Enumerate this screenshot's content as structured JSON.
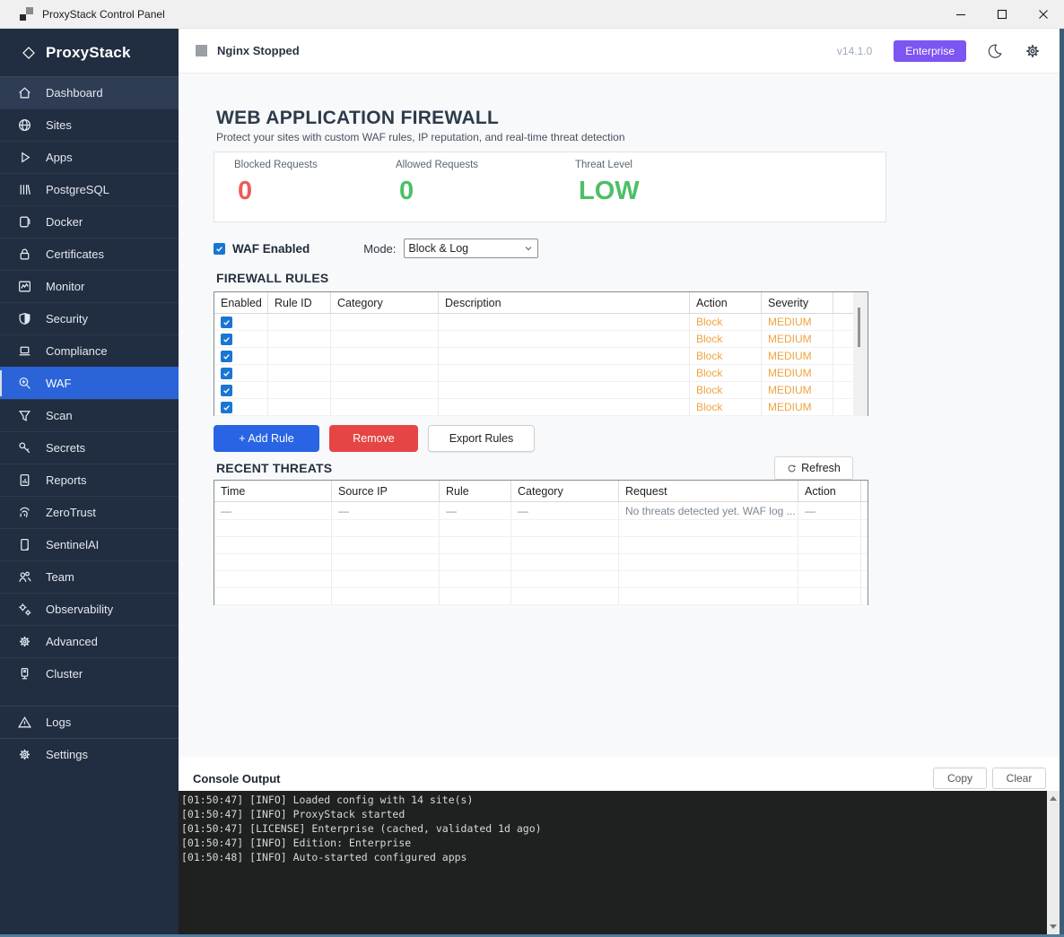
{
  "titlebar": {
    "title": "ProxyStack Control Panel"
  },
  "sidebar": {
    "brand": "ProxyStack",
    "items": [
      {
        "label": "Dashboard",
        "icon": "home-icon",
        "state": "hilite"
      },
      {
        "label": "Sites",
        "icon": "globe-icon"
      },
      {
        "label": "Apps",
        "icon": "play-icon"
      },
      {
        "label": "PostgreSQL",
        "icon": "database-icon"
      },
      {
        "label": "Docker",
        "icon": "container-icon"
      },
      {
        "label": "Certificates",
        "icon": "lock-icon"
      },
      {
        "label": "Monitor",
        "icon": "chart-icon"
      },
      {
        "label": "Security",
        "icon": "shield-icon"
      },
      {
        "label": "Compliance",
        "icon": "laptop-icon"
      },
      {
        "label": "WAF",
        "icon": "search-plus-icon",
        "state": "active"
      },
      {
        "label": "Scan",
        "icon": "funnel-icon"
      },
      {
        "label": "Secrets",
        "icon": "key-icon"
      },
      {
        "label": "Reports",
        "icon": "report-icon"
      },
      {
        "label": "ZeroTrust",
        "icon": "fingerprint-icon"
      },
      {
        "label": "SentinelAI",
        "icon": "document-icon"
      },
      {
        "label": "Team",
        "icon": "people-icon"
      },
      {
        "label": "Observability",
        "icon": "gears-icon"
      },
      {
        "label": "Advanced",
        "icon": "gear-icon"
      },
      {
        "label": "Cluster",
        "icon": "server-icon"
      }
    ],
    "footer_items": [
      {
        "label": "Logs",
        "icon": "warning-icon"
      },
      {
        "label": "Settings",
        "icon": "gear-icon"
      }
    ]
  },
  "topbar": {
    "status": "Nginx Stopped",
    "version": "v14.1.0",
    "badge": "Enterprise"
  },
  "waf": {
    "title": "WEB APPLICATION FIREWALL",
    "subtitle": "Protect your sites with custom WAF rules, IP reputation, and real-time threat detection",
    "stats": [
      {
        "label": "Blocked Requests",
        "value": "0",
        "color": "#e74c3c"
      },
      {
        "label": "Allowed Requests",
        "value": "0",
        "color": "#2eac44"
      },
      {
        "label": "Threat Level",
        "value": "LOW",
        "color": "#2eac44"
      }
    ],
    "enabled_label": "WAF Enabled",
    "enabled_checked": true,
    "mode_label": "Mode:",
    "mode_value": "Block & Log",
    "rules": {
      "heading": "FIREWALL RULES",
      "columns": [
        "Enabled",
        "Rule ID",
        "Category",
        "Description",
        "Action",
        "Severity"
      ],
      "rows": [
        {
          "enabled": true,
          "rule_id": "",
          "category": "",
          "description": "",
          "action": "Block",
          "severity": "MEDIUM"
        },
        {
          "enabled": true,
          "rule_id": "",
          "category": "",
          "description": "",
          "action": "Block",
          "severity": "MEDIUM"
        },
        {
          "enabled": true,
          "rule_id": "",
          "category": "",
          "description": "",
          "action": "Block",
          "severity": "MEDIUM"
        },
        {
          "enabled": true,
          "rule_id": "",
          "category": "",
          "description": "",
          "action": "Block",
          "severity": "MEDIUM"
        },
        {
          "enabled": true,
          "rule_id": "",
          "category": "",
          "description": "",
          "action": "Block",
          "severity": "MEDIUM"
        },
        {
          "enabled": true,
          "rule_id": "",
          "category": "",
          "description": "",
          "action": "Block",
          "severity": "MEDIUM"
        }
      ],
      "buttons": {
        "add": "+ Add Rule",
        "remove": "Remove",
        "export": "Export Rules"
      }
    },
    "threats": {
      "heading": "RECENT THREATS",
      "refresh_label": "Refresh",
      "columns": [
        "Time",
        "Source IP",
        "Rule",
        "Category",
        "Request",
        "Action"
      ],
      "rows": [
        {
          "time": "—",
          "source_ip": "—",
          "rule": "—",
          "category": "—",
          "request": "No threats detected yet. WAF log ...",
          "action": "—"
        }
      ],
      "empty_rows": 5
    }
  },
  "console": {
    "title": "Console Output",
    "copy_label": "Copy",
    "clear_label": "Clear",
    "lines": [
      "[01:50:47] [INFO] Loaded config with 14 site(s)",
      "[01:50:47] [INFO] ProxyStack started",
      "[01:50:47] [LICENSE] Enterprise (cached, validated 1d ago)",
      "[01:50:47] [INFO] Edition: Enterprise",
      "[01:50:48] [INFO] Auto-started configured apps"
    ]
  },
  "colors": {
    "sidebar_bg": "#212d40",
    "active_item": "#2a64d8",
    "accent_blue": "#1f6be0",
    "danger_red": "#e64545",
    "warn_orange": "#efa440",
    "success_green": "#2eac44",
    "stat_red": "#e74c3c",
    "badge_purple": "#7d55f3",
    "checkbox_blue": "#1976d2"
  }
}
